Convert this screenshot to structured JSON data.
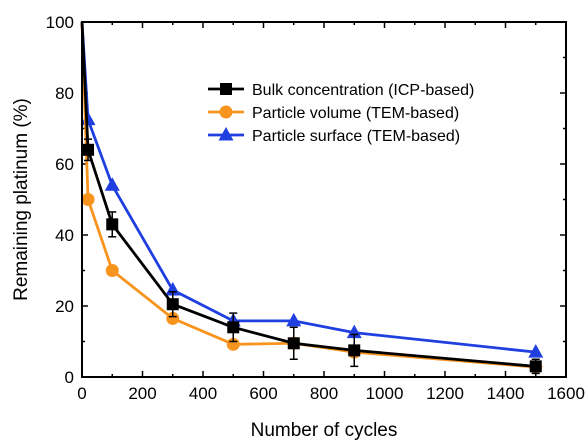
{
  "chart_data": {
    "type": "line",
    "xlabel": "Number of cycles",
    "ylabel": "Remaining platinum (%)",
    "xlim": [
      0,
      1600
    ],
    "ylim": [
      0,
      100
    ],
    "xticks": [
      0,
      200,
      400,
      600,
      800,
      1000,
      1200,
      1400,
      1600
    ],
    "yticks": [
      0,
      20,
      40,
      60,
      80,
      100
    ],
    "legend_position": "top-right",
    "grid": false,
    "series": [
      {
        "name": "Bulk concentration (ICP-based)",
        "color": "#000000",
        "marker": "square",
        "x": [
          0,
          20,
          100,
          300,
          500,
          700,
          900,
          1500
        ],
        "y": [
          100,
          64,
          43,
          20.5,
          14,
          9.5,
          7.5,
          3
        ],
        "err": [
          0,
          3,
          3.5,
          3.5,
          4,
          4.5,
          4.5,
          2
        ]
      },
      {
        "name": "Particle volume (TEM-based)",
        "color": "#f7941d",
        "marker": "circle",
        "x": [
          0,
          20,
          100,
          300,
          500,
          700,
          900,
          1500
        ],
        "y": [
          100,
          50,
          30,
          16.5,
          9.2,
          9.5,
          7,
          2.8
        ],
        "err": []
      },
      {
        "name": "Particle surface (TEM-based)",
        "color": "#1f3fe0",
        "marker": "triangle",
        "x": [
          0,
          20,
          100,
          300,
          500,
          700,
          900,
          1500
        ],
        "y": [
          100,
          72.5,
          54,
          24.5,
          15.8,
          15.8,
          12.5,
          7
        ],
        "err": []
      }
    ]
  }
}
